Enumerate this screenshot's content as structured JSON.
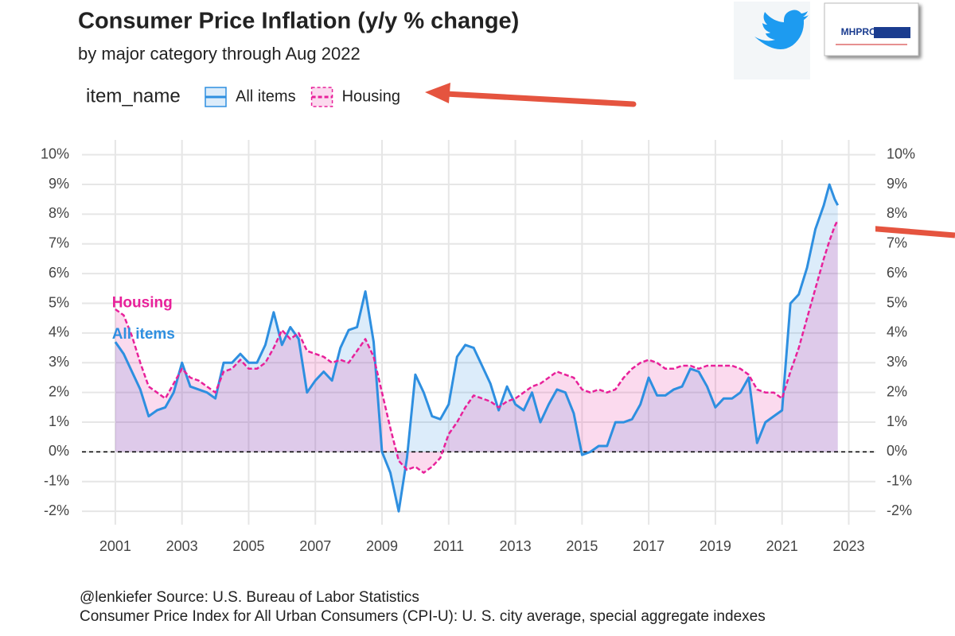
{
  "chart_data": {
    "type": "line",
    "title": "Consumer Price Inflation (y/y % change)",
    "subtitle": "by major category through Aug 2022",
    "legend_title": "item_name",
    "legend_position": "top-left",
    "caption": [
      "@lenkiefer Source: U.S. Bureau of Labor Statistics",
      "Consumer Price Index for All Urban Consumers (CPI-U): U. S. city average, special aggregate indexes"
    ],
    "logo_text": "MHPRONEWS",
    "annotations": [
      {
        "text": "Housing",
        "x": 2000.9,
        "y": 5.0,
        "color": "#e8219a"
      },
      {
        "text": "All items",
        "x": 2000.9,
        "y": 3.95,
        "color": "#2e8fe0"
      }
    ],
    "hline": 0,
    "grid": true,
    "xlim": [
      2000,
      2023.8
    ],
    "xticks": [
      2001,
      2003,
      2005,
      2007,
      2009,
      2011,
      2013,
      2015,
      2017,
      2019,
      2021,
      2023
    ],
    "ylim": [
      -2.45,
      10.5
    ],
    "yticks": [
      {
        "value": -2,
        "label": "-2%"
      },
      {
        "value": -1,
        "label": "-1%"
      },
      {
        "value": 0,
        "label": "0%"
      },
      {
        "value": 1,
        "label": "1%"
      },
      {
        "value": 2,
        "label": "2%"
      },
      {
        "value": 3,
        "label": "3%"
      },
      {
        "value": 4,
        "label": "4%"
      },
      {
        "value": 5,
        "label": "5%"
      },
      {
        "value": 6,
        "label": "6%"
      },
      {
        "value": 7,
        "label": "7%"
      },
      {
        "value": 8,
        "label": "8%"
      },
      {
        "value": 9,
        "label": "9%"
      },
      {
        "value": 10,
        "label": "10%"
      }
    ],
    "x": [
      2001,
      2001.25,
      2001.5,
      2001.75,
      2002,
      2002.25,
      2002.5,
      2002.75,
      2003,
      2003.25,
      2003.5,
      2003.75,
      2004,
      2004.25,
      2004.5,
      2004.75,
      2005,
      2005.25,
      2005.5,
      2005.75,
      2006,
      2006.25,
      2006.5,
      2006.75,
      2007,
      2007.25,
      2007.5,
      2007.75,
      2008,
      2008.25,
      2008.5,
      2008.75,
      2009,
      2009.25,
      2009.5,
      2009.75,
      2010,
      2010.25,
      2010.5,
      2010.75,
      2011,
      2011.25,
      2011.5,
      2011.75,
      2012,
      2012.25,
      2012.5,
      2012.75,
      2013,
      2013.25,
      2013.5,
      2013.75,
      2014,
      2014.25,
      2014.5,
      2014.75,
      2015,
      2015.25,
      2015.5,
      2015.75,
      2016,
      2016.25,
      2016.5,
      2016.75,
      2017,
      2017.25,
      2017.5,
      2017.75,
      2018,
      2018.25,
      2018.5,
      2018.75,
      2019,
      2019.25,
      2019.5,
      2019.75,
      2020,
      2020.25,
      2020.5,
      2020.75,
      2021,
      2021.25,
      2021.5,
      2021.75,
      2022,
      2022.25,
      2022.42,
      2022.58,
      2022.67
    ],
    "series": [
      {
        "name": "All items",
        "color": "#2e8fe0",
        "dash": false,
        "values": [
          3.7,
          3.3,
          2.7,
          2.1,
          1.2,
          1.4,
          1.5,
          2.0,
          3.0,
          2.2,
          2.1,
          2.0,
          1.8,
          3.0,
          3.0,
          3.3,
          3.0,
          3.0,
          3.6,
          4.7,
          3.6,
          4.2,
          3.8,
          2.0,
          2.4,
          2.7,
          2.4,
          3.5,
          4.1,
          4.2,
          5.4,
          3.7,
          0.0,
          -0.7,
          -2.0,
          -0.2,
          2.6,
          2.0,
          1.2,
          1.1,
          1.6,
          3.2,
          3.6,
          3.5,
          2.9,
          2.3,
          1.4,
          2.2,
          1.6,
          1.4,
          2.0,
          1.0,
          1.6,
          2.1,
          2.0,
          1.3,
          -0.1,
          0.0,
          0.2,
          0.2,
          1.0,
          1.0,
          1.1,
          1.6,
          2.5,
          1.9,
          1.9,
          2.1,
          2.2,
          2.8,
          2.7,
          2.2,
          1.5,
          1.8,
          1.8,
          2.0,
          2.5,
          0.3,
          1.0,
          1.2,
          1.4,
          5.0,
          5.3,
          6.2,
          7.5,
          8.3,
          9.0,
          8.5,
          8.3
        ]
      },
      {
        "name": "Housing",
        "color": "#e8219a",
        "dash": true,
        "values": [
          4.8,
          4.6,
          3.9,
          3.0,
          2.2,
          2.0,
          1.8,
          2.3,
          2.8,
          2.5,
          2.4,
          2.2,
          2.0,
          2.7,
          2.8,
          3.1,
          2.8,
          2.8,
          3.0,
          3.5,
          4.1,
          3.8,
          4.0,
          3.4,
          3.3,
          3.2,
          3.0,
          3.1,
          3.0,
          3.4,
          3.8,
          3.2,
          2.0,
          0.8,
          -0.3,
          -0.6,
          -0.5,
          -0.7,
          -0.5,
          -0.2,
          0.6,
          1.0,
          1.5,
          1.9,
          1.8,
          1.7,
          1.5,
          1.7,
          1.8,
          2.0,
          2.2,
          2.3,
          2.5,
          2.7,
          2.6,
          2.5,
          2.1,
          2.0,
          2.1,
          2.0,
          2.1,
          2.5,
          2.8,
          3.0,
          3.1,
          3.0,
          2.8,
          2.8,
          2.9,
          2.9,
          2.8,
          2.9,
          2.9,
          2.9,
          2.9,
          2.8,
          2.6,
          2.1,
          2.0,
          2.0,
          1.8,
          2.7,
          3.5,
          4.5,
          5.5,
          6.5,
          7.1,
          7.6,
          7.8
        ]
      }
    ]
  }
}
